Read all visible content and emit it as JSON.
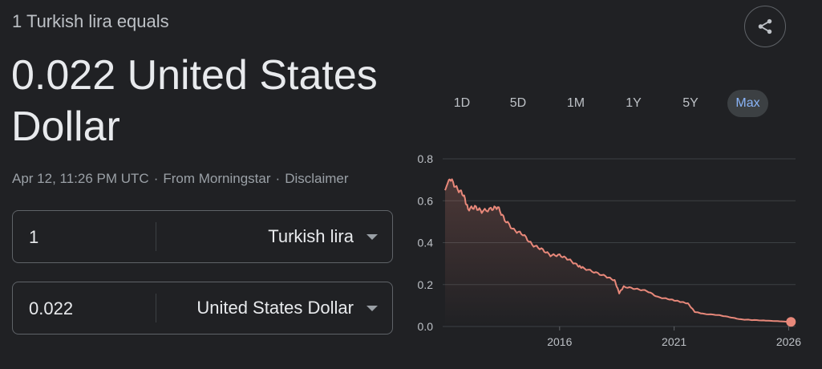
{
  "header": {
    "subtitle": "1 Turkish lira equals",
    "result_line1": "0.022 United States",
    "result_line2": "Dollar",
    "timestamp": "Apr 12, 11:26 PM UTC",
    "separator": "·",
    "source": "From Morningstar",
    "disclaimer": "Disclaimer"
  },
  "share_button": {
    "icon": "share-icon"
  },
  "converter": {
    "from": {
      "amount": "1",
      "currency": "Turkish lira"
    },
    "to": {
      "amount": "0.022",
      "currency": "United States Dollar"
    }
  },
  "ranges": [
    {
      "label": "1D",
      "active": false
    },
    {
      "label": "5D",
      "active": false
    },
    {
      "label": "1M",
      "active": false
    },
    {
      "label": "1Y",
      "active": false
    },
    {
      "label": "5Y",
      "active": false
    },
    {
      "label": "Max",
      "active": true
    }
  ],
  "colors": {
    "background": "#202124",
    "line": "#e8887a",
    "active_range_text": "#8ab4f8"
  },
  "chart_data": {
    "type": "area",
    "ylim": [
      0,
      0.8
    ],
    "y_ticks": [
      "0.0",
      "0.2",
      "0.4",
      "0.6",
      "0.8"
    ],
    "x_ticks": [
      {
        "label": "2016",
        "x": 2016
      },
      {
        "label": "2021",
        "x": 2021
      },
      {
        "label": "2026",
        "x": 2026
      }
    ],
    "xlim": [
      2011.0,
      2026.3
    ],
    "grid": true,
    "series": [
      {
        "x": [
          2011.0,
          2011.2,
          2011.5,
          2011.8,
          2012.0,
          2012.3,
          2012.6,
          2013.0,
          2013.3,
          2013.6,
          2014.0,
          2014.4,
          2014.8,
          2015.2,
          2015.6,
          2016.0,
          2016.4,
          2016.8,
          2017.0,
          2017.5,
          2018.0,
          2018.4,
          2018.6,
          2018.8,
          2019.3,
          2019.8,
          2020.3,
          2020.8,
          2021.2,
          2021.6,
          2021.9,
          2022.3,
          2022.9,
          2023.4,
          2023.9,
          2024.4,
          2025.0,
          2025.6,
          2026.1
        ],
        "y": [
          0.65,
          0.71,
          0.66,
          0.63,
          0.56,
          0.57,
          0.55,
          0.56,
          0.57,
          0.51,
          0.46,
          0.44,
          0.39,
          0.37,
          0.34,
          0.34,
          0.32,
          0.29,
          0.28,
          0.26,
          0.24,
          0.22,
          0.16,
          0.19,
          0.18,
          0.17,
          0.14,
          0.13,
          0.12,
          0.11,
          0.07,
          0.06,
          0.055,
          0.045,
          0.034,
          0.031,
          0.028,
          0.025,
          0.022
        ]
      }
    ]
  }
}
